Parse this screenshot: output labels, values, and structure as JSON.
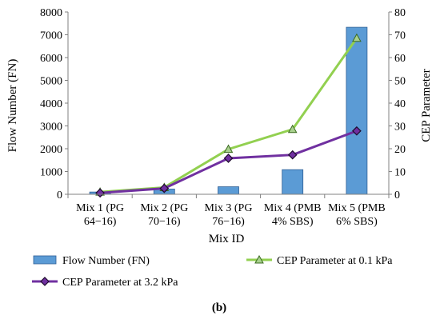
{
  "chart_data": {
    "type": "bar-line-combo",
    "categories": [
      [
        "Mix 1 (PG",
        "64−16)"
      ],
      [
        "Mix 2 (PG",
        "70−16)"
      ],
      [
        "Mix 3 (PG",
        "76−16)"
      ],
      [
        "Mix 4 (PMB",
        "4% SBS)"
      ],
      [
        "Mix 5 (PMB",
        "6% SBS)"
      ]
    ],
    "xlabel": "Mix ID",
    "ylabel_left": "Flow Number (FN)",
    "ylabel_right": "CEP Parameter",
    "ylim_left": [
      0,
      8000
    ],
    "yticks_left": [
      0,
      1000,
      2000,
      3000,
      4000,
      5000,
      6000,
      7000,
      8000
    ],
    "ylim_right": [
      0,
      80
    ],
    "yticks_right": [
      0,
      10,
      20,
      30,
      40,
      50,
      60,
      70,
      80
    ],
    "grid": false,
    "legend_position": "bottom",
    "series": [
      {
        "name": "Flow Number (FN)",
        "kind": "bar",
        "axis": "left",
        "color": "#5B9BD5",
        "edge": "#2F5F95",
        "values": [
          100,
          230,
          330,
          1080,
          7330
        ]
      },
      {
        "name": "CEP Parameter at 0.1 kPa",
        "kind": "line",
        "axis": "right",
        "color": "#92D050",
        "marker": "triangle",
        "values": [
          1.0,
          3.0,
          19.8,
          28.5,
          68.5
        ]
      },
      {
        "name": "CEP Parameter at 3.2 kPa",
        "kind": "line",
        "axis": "right",
        "color": "#7030A0",
        "marker": "diamond",
        "values": [
          0.6,
          2.6,
          15.8,
          17.3,
          27.8
        ]
      }
    ]
  },
  "caption": "(b)"
}
